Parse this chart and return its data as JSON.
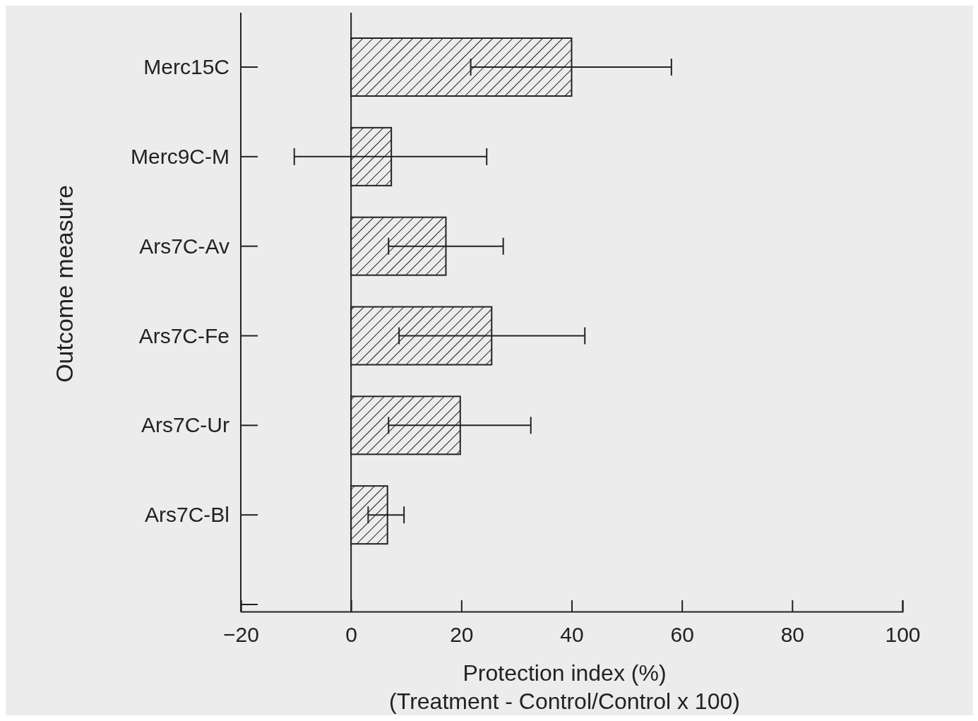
{
  "chart_data": {
    "type": "bar",
    "orientation": "horizontal",
    "ylabel": "Outcome measure",
    "xlabel": "Protection index (%)\n(Treatment - Control/Control x 100)",
    "categories": [
      "Merc15C",
      "Merc9C-M",
      "Ars7C-Av",
      "Ars7C-Fe",
      "Ars7C-Ur",
      "Ars7C-Bl",
      null
    ],
    "values": [
      40,
      7.3,
      17.2,
      25.5,
      19.8,
      6.6,
      null
    ],
    "errors": [
      [
        21.7,
        58.1
      ],
      [
        -10.3,
        24.6
      ],
      [
        6.8,
        27.6
      ],
      [
        8.7,
        42.4
      ],
      [
        6.8,
        32.6
      ],
      [
        3.1,
        9.6
      ],
      null
    ],
    "color": "#222222",
    "xlim": [
      -20,
      100
    ],
    "xticks": [
      -20,
      0,
      20,
      40,
      60,
      80,
      100
    ],
    "ref_lines": [
      {
        "axis": "x",
        "value": 0,
        "color": "#222222"
      }
    ],
    "grid": false
  }
}
